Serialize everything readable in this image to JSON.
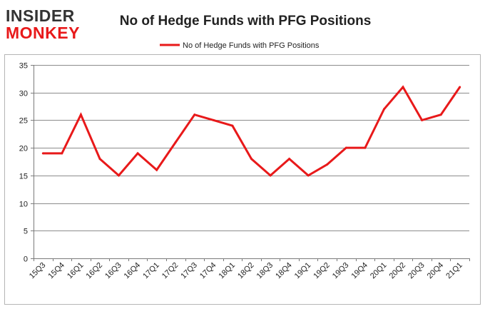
{
  "logo": {
    "line1": "INSIDER",
    "line2": "MONKEY"
  },
  "colors": {
    "line": "#e8191a",
    "grid": "#8c8c8c",
    "axis": "#7a7a7a",
    "text": "#222222",
    "logo_dark": "#333333",
    "logo_red": "#e8191a",
    "frame": "#b5b5b5"
  },
  "chart_data": {
    "type": "line",
    "title": "No of Hedge Funds with PFG Positions",
    "legend": {
      "label": "No of Hedge Funds with PFG Positions",
      "position": "top-center"
    },
    "xlabel": "",
    "ylabel": "",
    "ylim": [
      0,
      35
    ],
    "yticks": [
      0,
      5,
      10,
      15,
      20,
      25,
      30,
      35
    ],
    "grid": true,
    "categories": [
      "15Q3",
      "15Q4",
      "16Q1",
      "16Q2",
      "16Q3",
      "16Q4",
      "17Q1",
      "17Q2",
      "17Q3",
      "17Q4",
      "18Q1",
      "18Q2",
      "18Q3",
      "18Q4",
      "19Q1",
      "19Q2",
      "19Q3",
      "19Q4",
      "20Q1",
      "20Q2",
      "20Q3",
      "20Q4",
      "21Q1"
    ],
    "series": [
      {
        "name": "No of Hedge Funds with PFG Positions",
        "values": [
          19,
          19,
          26,
          18,
          15,
          19,
          16,
          21,
          26,
          25,
          24,
          18,
          15,
          18,
          15,
          17,
          20,
          20,
          27,
          31,
          25,
          26,
          31
        ]
      }
    ]
  }
}
